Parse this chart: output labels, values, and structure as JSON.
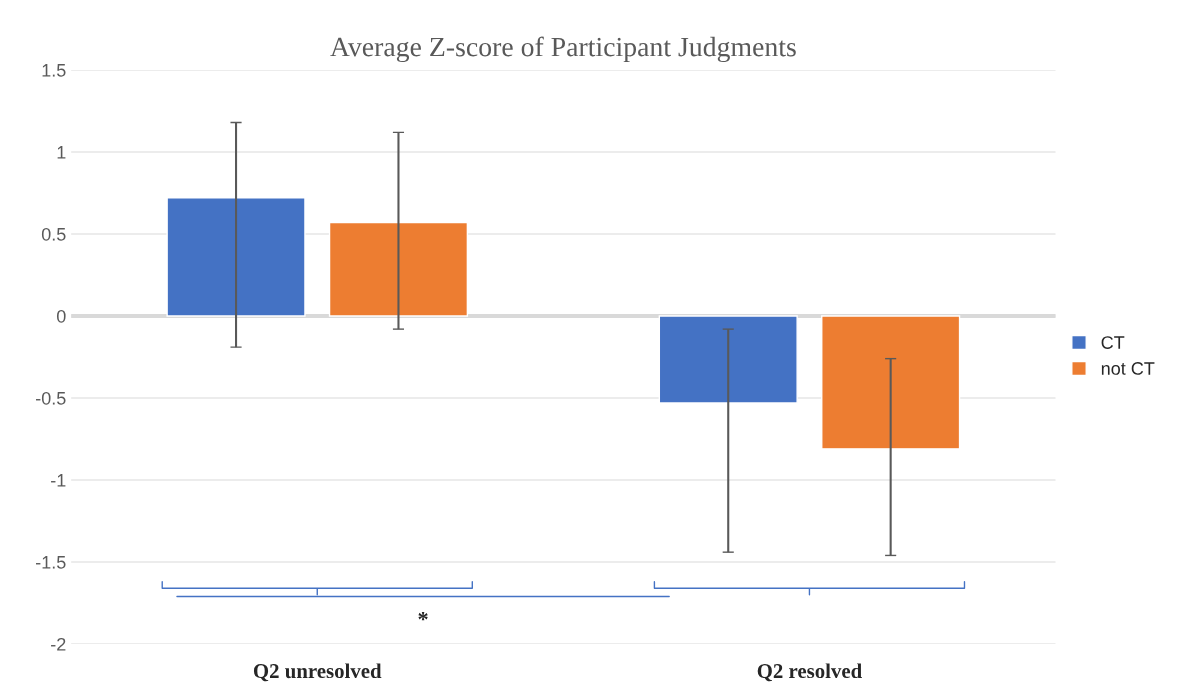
{
  "chart_data": {
    "type": "bar",
    "title": "Average Z-score of Participant Judgments",
    "categories": [
      "Q2 unresolved",
      "Q2 resolved"
    ],
    "series": [
      {
        "name": "CT",
        "color": "#4472c4",
        "values": [
          0.72,
          -0.53
        ],
        "errors": [
          [
            -0.19,
            1.18
          ],
          [
            -1.44,
            -0.08
          ]
        ]
      },
      {
        "name": "not CT",
        "color": "#ed7d31",
        "values": [
          0.57,
          -0.81
        ],
        "errors": [
          [
            -0.08,
            1.12
          ],
          [
            -1.46,
            -0.26
          ]
        ]
      }
    ],
    "ylim": [
      -2,
      1.5
    ],
    "yticks": [
      {
        "value": -2,
        "label": "-2"
      },
      {
        "value": -1.5,
        "label": "-1.5"
      },
      {
        "value": -1,
        "label": "-1"
      },
      {
        "value": -0.5,
        "label": "-0.5"
      },
      0,
      0.5,
      1,
      1.5
    ],
    "grid": "y",
    "legend": "right",
    "annotations": [
      "*"
    ]
  }
}
